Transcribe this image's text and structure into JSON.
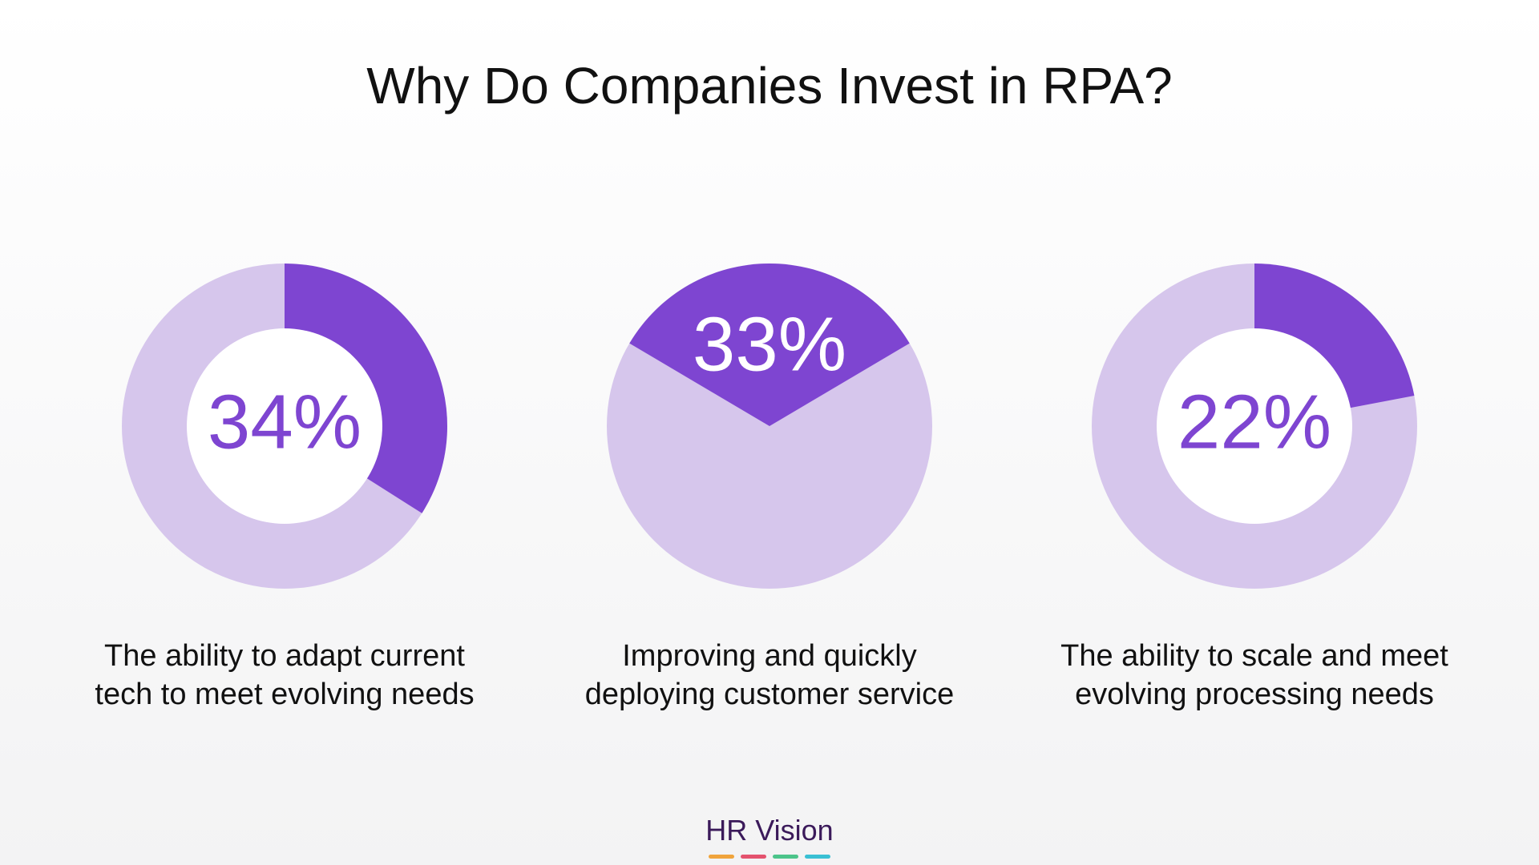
{
  "title": "Why Do Companies Invest in RPA?",
  "colors": {
    "primary": "#7e45d1",
    "secondary": "#d6c6ec",
    "hole": "#ffffff",
    "logo_text": "#3b1a5a",
    "logo_bars": [
      "#f0a43c",
      "#e4526e",
      "#4cc48a",
      "#3ac0d4"
    ]
  },
  "chart_data": [
    {
      "type": "pie",
      "style": "donut",
      "value_label": "34%",
      "values": [
        34,
        66
      ],
      "caption_lines": [
        "The ability to adapt current",
        "tech to meet evolving needs"
      ]
    },
    {
      "type": "pie",
      "style": "pie",
      "value_label": "33%",
      "values": [
        33,
        67
      ],
      "caption_lines": [
        "Improving and quickly",
        "deploying customer service"
      ]
    },
    {
      "type": "pie",
      "style": "donut",
      "value_label": "22%",
      "values": [
        22,
        78
      ],
      "caption_lines": [
        "The ability to scale and meet",
        "evolving processing needs"
      ]
    }
  ],
  "logo": {
    "text": "HR Vision"
  }
}
